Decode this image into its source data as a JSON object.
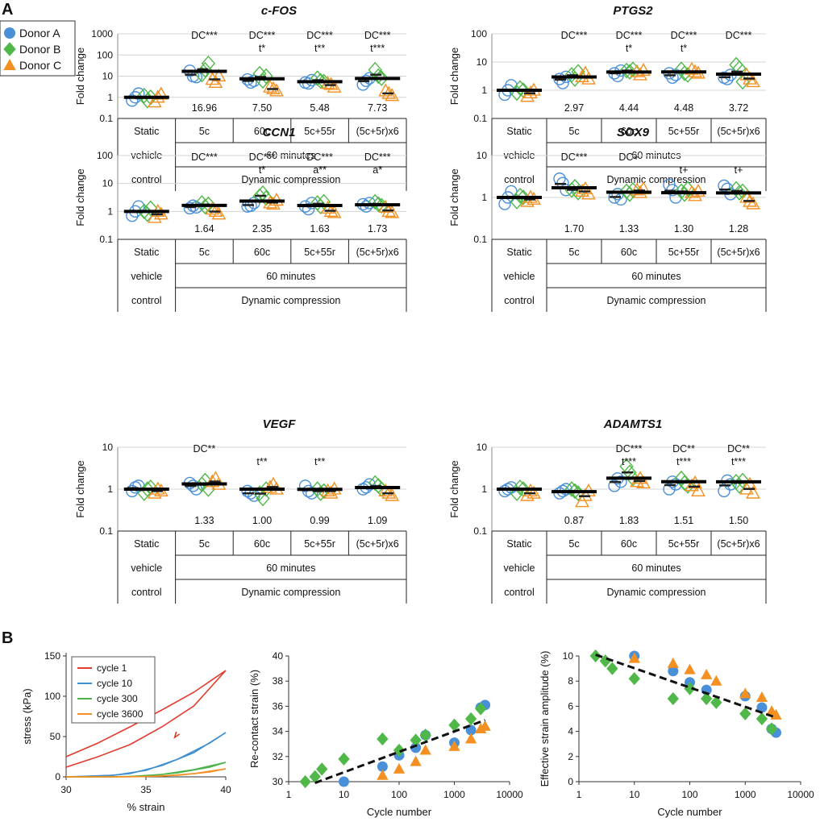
{
  "panel_labels": {
    "a": "A",
    "b": "B"
  },
  "legend": [
    {
      "name": "Donor A",
      "marker": "circle",
      "color": "#4a90d9"
    },
    {
      "name": "Donor B",
      "marker": "diamond",
      "color": "#4fb848"
    },
    {
      "name": "Donor C",
      "marker": "triangle",
      "color": "#f39021"
    }
  ],
  "categories": [
    "Static",
    "5c",
    "60c",
    "5c+55r",
    "(5c+5r)x6"
  ],
  "category_rows": {
    "static": [
      "vehicle",
      "control"
    ],
    "group_time": "60 minutes",
    "group_type": "Dynamic compression"
  },
  "chart_data": [
    {
      "type": "scatter",
      "title": "c-FOS",
      "scale": "log",
      "ylabel": "Fold change",
      "y_ticks": [
        "1000",
        "100",
        "10",
        "1",
        "0.1"
      ],
      "ylim": [
        0.1,
        1000
      ],
      "means": [
        1.0,
        16.96,
        7.5,
        5.48,
        7.73
      ],
      "mean_labels": [
        "",
        "16.96",
        "7.50",
        "5.48",
        "7.73"
      ],
      "sig_top": [
        "",
        "DC***",
        "DC***",
        "DC***",
        "DC***"
      ],
      "sig_bottom": [
        "",
        "",
        "t*",
        "t**",
        "t***"
      ],
      "donor_a": [
        [
          0.7,
          1.0,
          1.5
        ],
        [
          18,
          10,
          9
        ],
        [
          7,
          5,
          6
        ],
        [
          5,
          4.5,
          6.5
        ],
        [
          4,
          6,
          8
        ]
      ],
      "donor_b": [
        [
          1.2,
          0.7,
          1.0
        ],
        [
          12,
          20,
          40
        ],
        [
          13,
          6,
          10
        ],
        [
          8,
          6,
          5.5
        ],
        [
          20,
          10,
          8
        ]
      ],
      "donor_c": [
        [
          0.6,
          1.0,
          1.4
        ],
        [
          7,
          5,
          10
        ],
        [
          3,
          2.5,
          2
        ],
        [
          4.5,
          4,
          3
        ],
        [
          2,
          1.5,
          1.2
        ]
      ]
    },
    {
      "type": "scatter",
      "title": "PTGS2",
      "scale": "log",
      "ylabel": "Fold change",
      "y_ticks": [
        "100",
        "10",
        "1",
        "0.1"
      ],
      "ylim": [
        0.1,
        100
      ],
      "means": [
        1.0,
        2.97,
        4.44,
        4.48,
        3.72
      ],
      "mean_labels": [
        "",
        "2.97",
        "4.44",
        "4.48",
        "3.72"
      ],
      "sig_top": [
        "",
        "DC***",
        "DC***",
        "DC***",
        "DC***"
      ],
      "sig_bottom": [
        "",
        "",
        "t*",
        "t*",
        ""
      ],
      "donor_a": [
        [
          0.7,
          1.0,
          1.5
        ],
        [
          2.5,
          1.8,
          3.0
        ],
        [
          4.0,
          3.2,
          5.0
        ],
        [
          4.0,
          2.8,
          3.5
        ],
        [
          2.8,
          2.5,
          3.5
        ]
      ],
      "donor_b": [
        [
          0.8,
          1.2,
          1.0
        ],
        [
          3.5,
          2.5,
          4.5
        ],
        [
          5.0,
          4.5,
          5.5
        ],
        [
          5.5,
          4.0,
          3.5
        ],
        [
          8.0,
          6.0,
          2.0
        ]
      ],
      "donor_c": [
        [
          0.6,
          0.8,
          1.0
        ],
        [
          3.0,
          4.0,
          2.5
        ],
        [
          4.5,
          3.5,
          5.0
        ],
        [
          5.5,
          4.5,
          4.0
        ],
        [
          3.5,
          2.5,
          2.0
        ]
      ]
    },
    {
      "type": "scatter",
      "title": "CCN1",
      "scale": "log",
      "ylabel": "Fold change",
      "y_ticks": [
        "100",
        "10",
        "1",
        "0.1"
      ],
      "ylim": [
        0.1,
        100
      ],
      "means": [
        1.0,
        1.64,
        2.35,
        1.63,
        1.73
      ],
      "mean_labels": [
        "",
        "1.64",
        "2.35",
        "1.63",
        "1.73"
      ],
      "sig_top": [
        "",
        "DC***",
        "DC***",
        "DC***",
        "DC***"
      ],
      "sig_bottom": [
        "",
        "",
        "t*",
        "a**",
        "a*"
      ],
      "donor_a": [
        [
          0.7,
          1.0,
          1.5
        ],
        [
          1.3,
          1.6,
          1.4
        ],
        [
          1.5,
          1.6,
          2.0
        ],
        [
          1.5,
          1.2,
          2.0
        ],
        [
          1.8,
          1.5,
          2.0
        ]
      ],
      "donor_b": [
        [
          1.0,
          0.8,
          1.3
        ],
        [
          2.0,
          1.5,
          1.8
        ],
        [
          3.5,
          4.5,
          3.0
        ],
        [
          2.0,
          1.5,
          2.2
        ],
        [
          2.2,
          1.8,
          1.6
        ]
      ],
      "donor_c": [
        [
          0.6,
          1.0,
          0.8
        ],
        [
          1.2,
          1.0,
          0.8
        ],
        [
          2.0,
          1.8,
          2.5
        ],
        [
          1.3,
          1.0,
          0.9
        ],
        [
          1.4,
          1.0,
          0.9
        ]
      ]
    },
    {
      "type": "scatter",
      "title": "SOX9",
      "scale": "log",
      "ylabel": "Fold change",
      "y_ticks": [
        "10",
        "1",
        "0.1"
      ],
      "ylim": [
        0.1,
        10
      ],
      "means": [
        1.0,
        1.7,
        1.33,
        1.3,
        1.28
      ],
      "mean_labels": [
        "",
        "1.70",
        "1.33",
        "1.30",
        "1.28"
      ],
      "sig_top": [
        "",
        "DC***",
        "DC+",
        "",
        ""
      ],
      "sig_bottom": [
        "",
        "",
        "",
        "t+",
        "t+"
      ],
      "donor_a": [
        [
          0.7,
          1.0,
          1.4
        ],
        [
          2.8,
          2.2,
          1.5
        ],
        [
          1.0,
          1.2,
          0.9
        ],
        [
          2.0,
          1.5,
          1.0
        ],
        [
          1.9,
          1.6,
          1.2
        ]
      ],
      "donor_b": [
        [
          0.8,
          1.1,
          1.0
        ],
        [
          1.5,
          1.8,
          1.3
        ],
        [
          1.4,
          1.2,
          1.5
        ],
        [
          1.4,
          1.2,
          1.6
        ],
        [
          1.6,
          1.3,
          1.4
        ]
      ],
      "donor_c": [
        [
          0.8,
          1.0,
          0.9
        ],
        [
          1.4,
          1.6,
          1.2
        ],
        [
          1.5,
          1.3,
          1.6
        ],
        [
          1.3,
          1.1,
          1.4
        ],
        [
          1.0,
          0.8,
          0.7
        ]
      ]
    },
    {
      "type": "scatter",
      "title": "VEGF",
      "scale": "log",
      "ylabel": "Fold change",
      "y_ticks": [
        "10",
        "1",
        "0.1"
      ],
      "ylim": [
        0.1,
        10
      ],
      "means": [
        1.0,
        1.33,
        1.0,
        0.99,
        1.09
      ],
      "mean_labels": [
        "",
        "1.33",
        "1.00",
        "0.99",
        "1.09"
      ],
      "sig_top": [
        "",
        "DC**",
        "",
        "",
        ""
      ],
      "sig_bottom": [
        "",
        "",
        "t**",
        "t**",
        ""
      ],
      "donor_a": [
        [
          0.9,
          1.1,
          1.2
        ],
        [
          1.4,
          1.2,
          1.0
        ],
        [
          0.9,
          0.8,
          0.7
        ],
        [
          1.2,
          0.9,
          0.8
        ],
        [
          1.0,
          1.1,
          1.3
        ]
      ],
      "donor_b": [
        [
          0.8,
          1.0,
          1.1
        ],
        [
          1.3,
          1.6,
          1.0
        ],
        [
          0.8,
          0.6,
          1.0
        ],
        [
          1.0,
          0.8,
          0.9
        ],
        [
          1.4,
          1.2,
          1.0
        ]
      ],
      "donor_c": [
        [
          0.8,
          1.0,
          0.9
        ],
        [
          1.5,
          1.8,
          1.3
        ],
        [
          1.1,
          1.3,
          1.0
        ],
        [
          0.9,
          0.8,
          1.0
        ],
        [
          0.9,
          0.8,
          0.7
        ]
      ]
    },
    {
      "type": "scatter",
      "title": "ADAMTS1",
      "scale": "log",
      "ylabel": "Fold change",
      "y_ticks": [
        "10",
        "1",
        "0.1"
      ],
      "ylim": [
        0.1,
        10
      ],
      "means": [
        1.0,
        0.87,
        1.83,
        1.51,
        1.5
      ],
      "mean_labels": [
        "",
        "0.87",
        "1.83",
        "1.51",
        "1.50"
      ],
      "sig_top": [
        "",
        "",
        "DC***",
        "DC**",
        "DC**"
      ],
      "sig_bottom": [
        "",
        "",
        "t***",
        "t***",
        "t***"
      ],
      "donor_a": [
        [
          0.9,
          1.0,
          1.1
        ],
        [
          0.8,
          0.9,
          1.0
        ],
        [
          1.2,
          1.8,
          1.5
        ],
        [
          1.0,
          1.5,
          1.3
        ],
        [
          0.9,
          1.6,
          1.3
        ]
      ],
      "donor_b": [
        [
          0.8,
          1.1,
          1.0
        ],
        [
          1.0,
          0.9,
          0.8
        ],
        [
          3.5,
          2.5,
          1.8
        ],
        [
          1.8,
          1.4,
          1.2
        ],
        [
          1.5,
          1.2,
          1.6
        ]
      ],
      "donor_c": [
        [
          0.7,
          0.9,
          0.8
        ],
        [
          0.5,
          0.7,
          0.9
        ],
        [
          1.5,
          1.8,
          1.4
        ],
        [
          1.2,
          1.4,
          0.9
        ],
        [
          1.0,
          1.3,
          0.8
        ]
      ]
    },
    {
      "type": "line",
      "title": "",
      "xlabel": "% strain",
      "ylabel": "stress (kPa)",
      "x_ticks": [
        "30",
        "35",
        "40"
      ],
      "y_ticks": [
        "150",
        "100",
        "50",
        "0"
      ],
      "xlim": [
        30,
        40
      ],
      "ylim": [
        0,
        150
      ],
      "series": [
        {
          "name": "cycle 1",
          "color": "#e23b2e",
          "loading": {
            "x": [
              30,
              32,
              34,
              36,
              38,
              40
            ],
            "y": [
              25,
              42,
              62,
              83,
              105,
              132
            ]
          },
          "unloading": {
            "x": [
              40,
              38,
              36,
              34,
              32,
              30
            ],
            "y": [
              132,
              88,
              62,
              40,
              25,
              12
            ]
          }
        },
        {
          "name": "cycle 10",
          "color": "#3f8fd0",
          "loading": {
            "x": [
              30,
              33,
              35,
              37,
              39,
              40
            ],
            "y": [
              0,
              2,
              8,
              22,
              42,
              55
            ]
          },
          "unloading": {
            "x": [
              40,
              38,
              36,
              34,
              32,
              30
            ],
            "y": [
              55,
              30,
              14,
              4,
              0.5,
              0
            ]
          }
        },
        {
          "name": "cycle 300",
          "color": "#4cb24a",
          "loading": {
            "x": [
              30,
              33,
              35,
              37,
              39,
              40
            ],
            "y": [
              0,
              0,
              1,
              5,
              12,
              18
            ]
          },
          "unloading": {
            "x": [
              40,
              38,
              36,
              34,
              32,
              30
            ],
            "y": [
              18,
              9,
              3,
              0.5,
              0,
              0
            ]
          }
        },
        {
          "name": "cycle 3600",
          "color": "#f39021",
          "loading": {
            "x": [
              30,
              33,
              35,
              37,
              39,
              40
            ],
            "y": [
              0,
              0,
              0.5,
              2,
              6,
              10
            ]
          },
          "unloading": {
            "x": [
              40,
              38,
              36,
              34,
              32,
              30
            ],
            "y": [
              10,
              4,
              1,
              0,
              0,
              0
            ]
          }
        }
      ]
    },
    {
      "type": "scatter",
      "title": "",
      "xlabel": "Cycle number",
      "ylabel": "Re-contact strain (%)",
      "x_scale": "log",
      "xlim": [
        1,
        10000
      ],
      "ylim": [
        30,
        40
      ],
      "x_ticks": [
        "1",
        "10",
        "100",
        "1000",
        "10000"
      ],
      "y_ticks": [
        "40",
        "38",
        "36",
        "34",
        "32",
        "30"
      ],
      "series": [
        {
          "name": "Donor A",
          "x": [
            10,
            50,
            100,
            200,
            300,
            1000,
            2000,
            3000,
            3600
          ],
          "y": [
            30.0,
            31.2,
            32.1,
            32.7,
            33.7,
            33.1,
            34.1,
            35.9,
            36.1
          ]
        },
        {
          "name": "Donor B",
          "x": [
            2,
            3,
            4,
            10,
            50,
            100,
            200,
            300,
            1000,
            2000,
            3000
          ],
          "y": [
            30.0,
            30.4,
            31.0,
            31.8,
            33.4,
            32.5,
            33.3,
            33.7,
            34.5,
            35.0,
            35.8
          ]
        },
        {
          "name": "Donor C",
          "x": [
            50,
            100,
            200,
            300,
            1000,
            2000,
            3000,
            3600
          ],
          "y": [
            30.5,
            31.0,
            31.6,
            32.5,
            32.8,
            33.4,
            34.2,
            34.4
          ]
        }
      ],
      "trend": {
        "x": [
          3,
          3600
        ],
        "y": [
          29.9,
          34.9
        ]
      }
    },
    {
      "type": "scatter",
      "title": "",
      "xlabel": "Cycle number",
      "ylabel": "Effective strain amplitude (%)",
      "x_scale": "log",
      "xlim": [
        1,
        10000
      ],
      "ylim": [
        0,
        10
      ],
      "x_ticks": [
        "1",
        "10",
        "100",
        "1000",
        "10000"
      ],
      "y_ticks": [
        "10",
        "8",
        "6",
        "4",
        "2",
        "0"
      ],
      "series": [
        {
          "name": "Donor A",
          "x": [
            10,
            50,
            100,
            200,
            1000,
            2000,
            3000,
            3600
          ],
          "y": [
            10.0,
            8.8,
            7.9,
            7.3,
            6.8,
            5.9,
            4.2,
            3.9
          ]
        },
        {
          "name": "Donor B",
          "x": [
            2,
            3,
            4,
            10,
            50,
            100,
            200,
            300,
            1000,
            2000,
            3000
          ],
          "y": [
            10.0,
            9.6,
            9.0,
            8.2,
            6.6,
            7.4,
            6.6,
            6.3,
            5.4,
            5.0,
            4.2
          ]
        },
        {
          "name": "Donor C",
          "x": [
            10,
            50,
            100,
            200,
            300,
            1000,
            2000,
            3000,
            3600
          ],
          "y": [
            9.8,
            9.4,
            8.9,
            8.5,
            8.0,
            7.0,
            6.7,
            5.6,
            5.3
          ]
        }
      ],
      "trend": {
        "x": [
          2,
          3600
        ],
        "y": [
          10.1,
          5.1
        ]
      }
    }
  ]
}
